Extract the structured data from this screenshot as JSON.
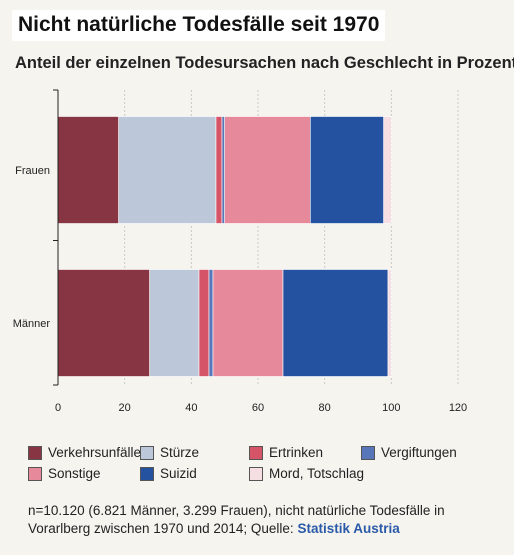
{
  "title": "Nicht natürliche Todesfälle seit 1970",
  "subtitle": "Anteil der einzelnen Todesursachen nach Geschlecht in Prozent",
  "source": {
    "text": "n=10.120 (6.821 Männer, 3.299 Frauen), nicht natürliche Todesfälle in Vorarlberg zwischen 1970 und 2014; Quelle:",
    "link": "Statistik Austria"
  },
  "chart_data": {
    "type": "bar",
    "orientation": "horizontal",
    "stacked": true,
    "categories": [
      "Frauen",
      "Männer"
    ],
    "series": [
      {
        "name": "Verkehrsunfälle",
        "color": "#873543",
        "values": [
          18.2,
          27.5
        ]
      },
      {
        "name": "Stürze",
        "color": "#bcc8da",
        "values": [
          29.2,
          14.8
        ]
      },
      {
        "name": "Ertrinken",
        "color": "#d65468",
        "values": [
          1.8,
          3.0
        ]
      },
      {
        "name": "Vergiftungen",
        "color": "#5877b8",
        "values": [
          0.8,
          1.2
        ]
      },
      {
        "name": "Sonstige",
        "color": "#e6899a",
        "values": [
          25.7,
          21.0
        ]
      },
      {
        "name": "Suizid",
        "color": "#2451a0",
        "values": [
          22.0,
          31.5
        ]
      },
      {
        "name": "Mord, Totschlag",
        "color": "#f5dfe2",
        "values": [
          2.3,
          1.0
        ]
      }
    ],
    "x_ticks": [
      "0",
      "20",
      "40",
      "60",
      "80",
      "100",
      "120"
    ],
    "xlim": [
      0,
      120
    ],
    "grid": true,
    "legend_position": "bottom"
  }
}
